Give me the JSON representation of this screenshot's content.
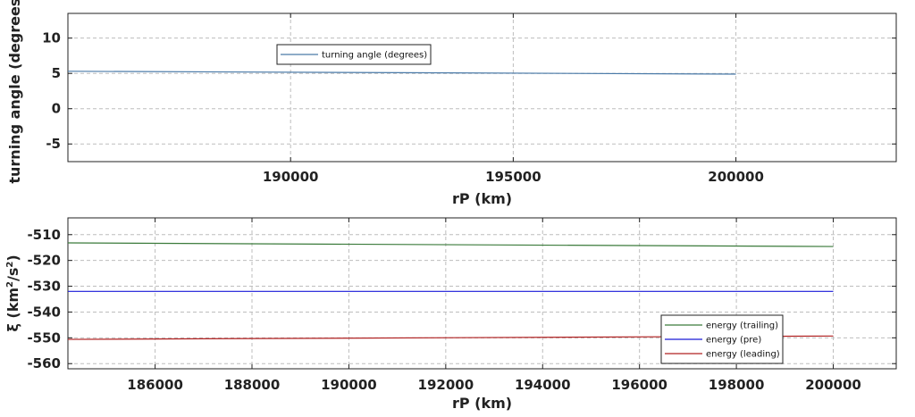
{
  "chart_data": [
    {
      "type": "line",
      "xlabel": "rP (km)",
      "ylabel": "turning angle (degrees)",
      "xlim": [
        185000,
        203600
      ],
      "ylim": [
        -7.5,
        13.5
      ],
      "xticks": [
        190000,
        195000,
        200000
      ],
      "yticks": [
        -5,
        0,
        5,
        10
      ],
      "grid": true,
      "legend_position": "top-left",
      "series": [
        {
          "name": "turning angle (degrees)",
          "color": "#4a7aa8",
          "x": [
            185000,
            200000
          ],
          "y": [
            5.3,
            4.9
          ]
        }
      ]
    },
    {
      "type": "line",
      "xlabel": "rP (km)",
      "ylabel": "ξ (km²/s²)",
      "ylabel_parts": {
        "main": "ξ (km",
        "sup1": "2",
        "mid": "/s",
        "sup2": "2",
        "end": ")"
      },
      "xlim": [
        184200,
        201300
      ],
      "ylim": [
        -562,
        -503.5
      ],
      "xticks": [
        186000,
        188000,
        190000,
        192000,
        194000,
        196000,
        198000,
        200000
      ],
      "yticks": [
        -510,
        -520,
        -530,
        -540,
        -550,
        -560
      ],
      "grid": true,
      "legend_position": "bottom-right",
      "series": [
        {
          "name": "energy (trailing)",
          "color": "#3a7a3a",
          "x": [
            184200,
            200000
          ],
          "y": [
            -513.2,
            -514.6
          ]
        },
        {
          "name": "energy (pre)",
          "color": "#1a1ad8",
          "x": [
            184200,
            200000
          ],
          "y": [
            -532.0,
            -532.0
          ]
        },
        {
          "name": "energy (leading)",
          "color": "#b02020",
          "x": [
            184200,
            200000
          ],
          "y": [
            -550.6,
            -549.3
          ]
        }
      ]
    }
  ]
}
